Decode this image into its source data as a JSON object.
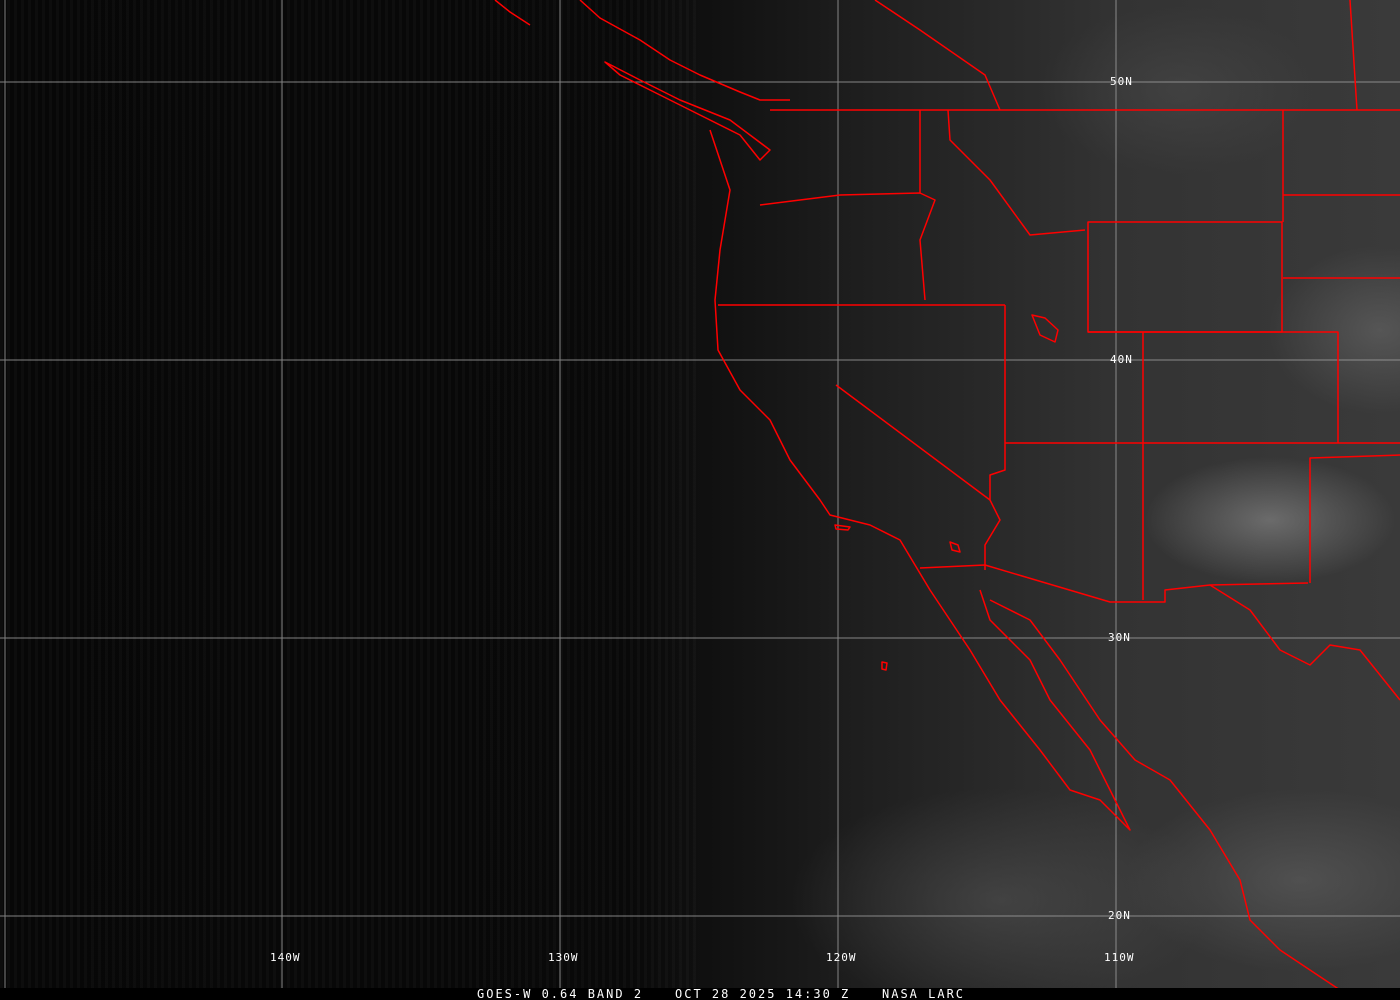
{
  "grid": {
    "latitudes": [
      "50N",
      "40N",
      "30N",
      "20N"
    ],
    "longitudes": [
      "140W",
      "130W",
      "120W",
      "110W"
    ]
  },
  "caption": {
    "satellite": "GOES-W 0.64 BAND 2",
    "datetime": "OCT 28 2025 14:30 Z",
    "source": "NASA LARC"
  },
  "colors": {
    "boundaries": "#ff0000",
    "grid": "#a0a0a0",
    "text": "#ffffff"
  }
}
